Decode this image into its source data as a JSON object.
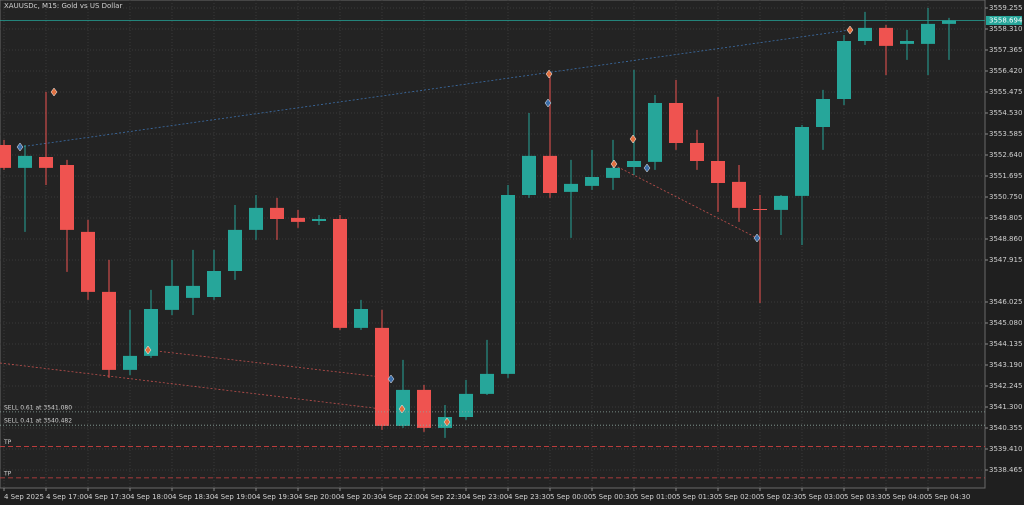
{
  "chart_data": {
    "type": "candlestick",
    "title": "XAUUSDc, M15:  Gold vs US Dollar",
    "up_color": "#26a69a",
    "down_color": "#ef5350",
    "grid": true,
    "ylim": [
      3537.655,
      3559.615
    ],
    "yticks": [
      3559.255,
      {
        "value": 3558.31,
        "label": "3558.310"
      },
      3557.365,
      {
        "value": 3556.42,
        "label": "3556.420"
      },
      3555.475,
      {
        "value": 3554.53,
        "label": "3554.530"
      },
      3553.585,
      {
        "value": 3552.64,
        "label": "3552.640"
      },
      3551.695,
      {
        "value": 3550.75,
        "label": "3550.750"
      },
      3549.805,
      {
        "value": 3548.86,
        "label": "3548.860"
      },
      3547.915,
      3546.025,
      {
        "value": 3545.08,
        "label": "3545.080"
      },
      3544.135,
      {
        "value": 3543.19,
        "label": "3543.190"
      },
      3542.245,
      {
        "value": 3541.3,
        "label": "3541.300"
      },
      3540.355,
      {
        "value": 3539.41,
        "label": "3539.410"
      },
      3538.465
    ],
    "categories": [
      "4 Sep 2025",
      null,
      "4 Sep 17:00",
      null,
      "4 Sep 17:30",
      null,
      "4 Sep 18:00",
      null,
      "4 Sep 18:30",
      null,
      "4 Sep 19:00",
      null,
      "4 Sep 19:30",
      null,
      "4 Sep 20:00",
      null,
      "4 Sep 20:30",
      null,
      "4 Sep 22:00",
      null,
      "4 Sep 22:30",
      null,
      "4 Sep 23:00",
      null,
      "4 Sep 23:30",
      null,
      "5 Sep 00:00",
      null,
      "5 Sep 00:30",
      null,
      "5 Sep 01:00",
      null,
      "5 Sep 01:30",
      null,
      "5 Sep 02:00",
      null,
      "5 Sep 02:30",
      null,
      "5 Sep 03:00",
      null,
      "5 Sep 03:30",
      null,
      "5 Sep 04:00",
      null,
      "5 Sep 04:30",
      null
    ],
    "open": [
      3553.09,
      3552.06,
      3552.55,
      3552.19,
      3549.18,
      3546.48,
      3542.97,
      3543.6,
      3545.67,
      3546.21,
      3546.25,
      3547.42,
      3549.27,
      3550.26,
      3549.81,
      3549.67,
      3549.76,
      3544.86,
      3544.86,
      3540.45,
      3542.07,
      3540.36,
      3540.85,
      3541.89,
      3542.79,
      3550.84,
      3552.6,
      3550.98,
      3551.25,
      3551.61,
      3552.1,
      3552.33,
      3554.98,
      3553.18,
      3552.37,
      3551.43,
      3550.21,
      3550.17,
      3550.8,
      3553.9,
      3555.16,
      3557.77,
      3558.36,
      3557.64,
      3557.64,
      3558.54
    ],
    "high": [
      3553.32,
      3553.09,
      3555.48,
      3552.42,
      3549.72,
      3547.92,
      3545.67,
      3546.57,
      3547.92,
      3548.37,
      3548.37,
      3550.39,
      3550.84,
      3550.71,
      3550.17,
      3549.94,
      3549.94,
      3546.12,
      3545.67,
      3543.42,
      3542.29,
      3541.39,
      3542.52,
      3544.32,
      3551.29,
      3554.53,
      3556.24,
      3552.42,
      3552.87,
      3553.32,
      3556.47,
      3555.34,
      3556.02,
      3553.77,
      3555.25,
      3552.19,
      3550.84,
      3550.84,
      3553.99,
      3555.57,
      3558.04,
      3559.08,
      3558.49,
      3558.27,
      3559.26,
      3558.81
    ],
    "low": [
      3551.97,
      3549.18,
      3551.29,
      3547.38,
      3546.12,
      3542.61,
      3542.74,
      3543.51,
      3545.44,
      3545.44,
      3546.12,
      3547.02,
      3548.82,
      3548.82,
      3549.36,
      3549.49,
      3544.77,
      3544.77,
      3540.27,
      3540.36,
      3540.18,
      3539.91,
      3540.72,
      3541.84,
      3542.61,
      3550.71,
      3550.71,
      3548.91,
      3551.07,
      3551.07,
      3551.74,
      3551.97,
      3552.87,
      3551.97,
      3550.08,
      3549.63,
      3545.98,
      3549.04,
      3548.59,
      3552.87,
      3554.89,
      3557.59,
      3556.24,
      3556.92,
      3556.24,
      3556.92
    ],
    "close": [
      3552.06,
      3552.6,
      3552.06,
      3549.27,
      3546.48,
      3542.97,
      3543.6,
      3545.71,
      3546.75,
      3546.75,
      3547.42,
      3549.27,
      3550.26,
      3549.76,
      3549.63,
      3549.76,
      3544.86,
      3545.71,
      3540.45,
      3542.07,
      3540.36,
      3540.85,
      3541.89,
      3542.79,
      3550.84,
      3552.6,
      3550.93,
      3551.34,
      3551.65,
      3552.06,
      3552.37,
      3554.98,
      3553.18,
      3552.37,
      3551.38,
      3550.26,
      3550.17,
      3550.8,
      3553.9,
      3555.16,
      3557.77,
      3558.36,
      3557.55,
      3557.77,
      3558.54,
      3558.694
    ],
    "current_price": 3558.694,
    "orders": [
      {
        "label": "SELL 0.61 at 3541.080",
        "price": 3541.08
      },
      {
        "label": "SELL 0.41 at 3540.482",
        "price": 3540.482
      }
    ],
    "take_profits": [
      {
        "label": "TP",
        "price": 3539.52
      },
      {
        "label": "TP",
        "price": 3538.11
      }
    ]
  }
}
